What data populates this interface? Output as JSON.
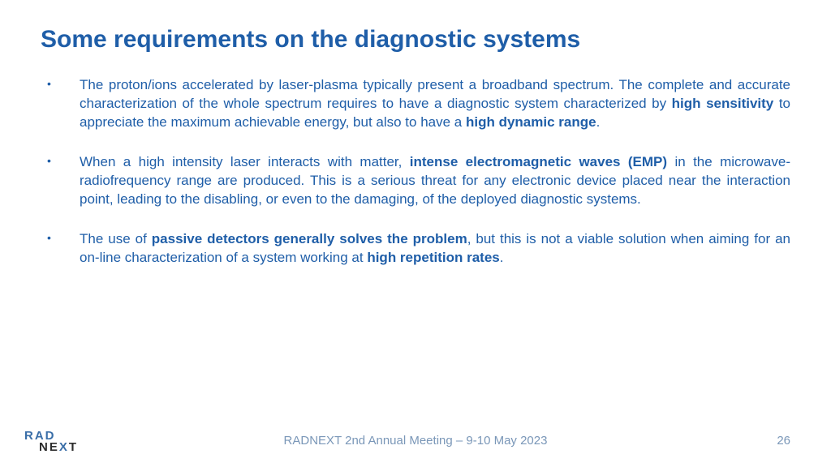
{
  "title": "Some requirements on the diagnostic systems",
  "bullets": [
    {
      "pre": "The proton/ions accelerated by laser-plasma typically present a broadband spectrum. The complete and accurate characterization of the whole spectrum requires to have a diagnostic system characterized by ",
      "b1": "high sensitivity",
      "mid": " to appreciate the maximum achievable energy, but also to have a ",
      "b2": "high dynamic range",
      "post": "."
    },
    {
      "pre": "When a high intensity laser interacts with matter, ",
      "b1": "intense electromagnetic waves (EMP)",
      "mid": " in the microwave-radiofrequency range are produced. This is a serious threat for any electronic device placed near the interaction point, leading to the disabling, or even to the damaging, of the deployed diagnostic systems.",
      "b2": "",
      "post": ""
    },
    {
      "pre": "The use of ",
      "b1": "passive detectors generally solves the problem",
      "mid": ", but this is not a viable solution when aiming for an on-line characterization of a system working at ",
      "b2": "high repetition rates",
      "post": "."
    }
  ],
  "logo": {
    "top": "RAD",
    "bot_pre": "NE",
    "bot_x": "X",
    "bot_post": "T"
  },
  "footer": "RADNEXT 2nd Annual Meeting – 9-10 May 2023",
  "page": "26",
  "colors": {
    "title": "#1f5ea8",
    "body": "#1f5ea8",
    "footer": "#7a97b8",
    "background": "#ffffff"
  },
  "fontsize": {
    "title": 30,
    "body": 17,
    "footer": 15
  }
}
